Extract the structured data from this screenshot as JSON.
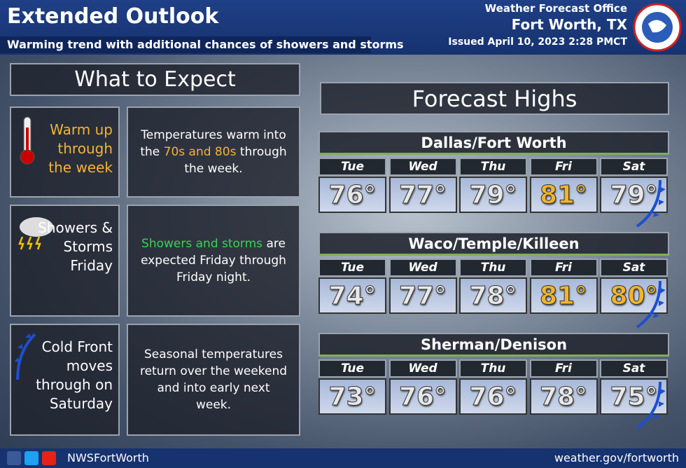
{
  "header": {
    "title": "Extended Outlook",
    "subtitle": "Warming trend with additional chances of showers and storms",
    "office": "Weather Forecast Office",
    "location": "Fort Worth, TX",
    "issued": "Issued April 10, 2023 2:28 PMCT"
  },
  "expect": {
    "heading": "What to Expect",
    "items": [
      {
        "label": "Warm up through the week",
        "label_color": "#f5b335",
        "text": [
          {
            "t": "Temperatures warm into the "
          },
          {
            "t": "70s and 80s",
            "color": "#f5b335"
          },
          {
            "t": " through the week."
          }
        ]
      },
      {
        "label": "Showers & Storms Friday",
        "label_color": "#ffffff",
        "text": [
          {
            "t": "Showers and storms",
            "color": "#39d353"
          },
          {
            "t": " are expected Friday through Friday night."
          }
        ]
      },
      {
        "label": "Cold Front moves through on Saturday",
        "label_color": "#ffffff",
        "text": [
          {
            "t": "Seasonal temperatures return over the weekend and into early next week."
          }
        ]
      }
    ]
  },
  "forecast": {
    "heading": "Forecast Highs",
    "cities": [
      {
        "name": "Dallas/Fort Worth",
        "days": [
          "Tue",
          "Wed",
          "Thu",
          "Fri",
          "Sat"
        ],
        "highs": [
          "76°",
          "77°",
          "79°",
          "81°",
          "79°"
        ],
        "colors": [
          "#e8e8e8",
          "#e8e8e8",
          "#e8e8e8",
          "#f2b52a",
          "#e8e8e8"
        ]
      },
      {
        "name": "Waco/Temple/Killeen",
        "days": [
          "Tue",
          "Wed",
          "Thu",
          "Fri",
          "Sat"
        ],
        "highs": [
          "74°",
          "77°",
          "78°",
          "81°",
          "80°"
        ],
        "colors": [
          "#e8e8e8",
          "#e8e8e8",
          "#e8e8e8",
          "#f2b52a",
          "#f2b52a"
        ]
      },
      {
        "name": "Sherman/Denison",
        "days": [
          "Tue",
          "Wed",
          "Thu",
          "Fri",
          "Sat"
        ],
        "highs": [
          "73°",
          "76°",
          "76°",
          "78°",
          "75°"
        ],
        "colors": [
          "#e8e8e8",
          "#e8e8e8",
          "#e8e8e8",
          "#e8e8e8",
          "#e8e8e8"
        ]
      }
    ]
  },
  "footer": {
    "handle": "NWSFortWorth",
    "url": "weather.gov/fortworth"
  }
}
